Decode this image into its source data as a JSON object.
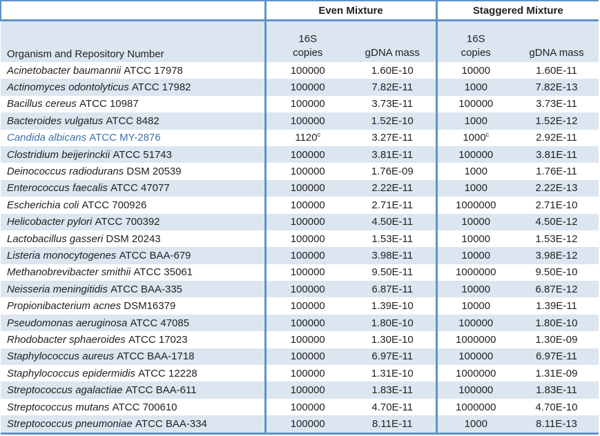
{
  "colors": {
    "stripe": "#dce6f1",
    "border": "#5f92c9",
    "highlight": "#3a6fae",
    "ink": "#1f1f1f"
  },
  "table": {
    "group_headers": {
      "even": "Even Mixture",
      "staggered": "Staggered Mixture"
    },
    "sub_headers": {
      "organism": "Organism and Repository Number",
      "copies_line1": "16S",
      "copies_line2": "copies",
      "gdna": "gDNA mass"
    },
    "rows": [
      {
        "organism_italic": "Acinetobacter baumannii",
        "organism_roman": "ATCC 17978",
        "highlight": false,
        "even_copies": "100000",
        "even_copies_sup": "",
        "even_gdna": "1.60E-10",
        "stag_copies": "10000",
        "stag_copies_sup": "",
        "stag_gdna": "1.60E-11"
      },
      {
        "organism_italic": "Actinomyces odontolyticus",
        "organism_roman": "ATCC 17982",
        "highlight": false,
        "even_copies": "100000",
        "even_copies_sup": "",
        "even_gdna": "7.82E-11",
        "stag_copies": "1000",
        "stag_copies_sup": "",
        "stag_gdna": "7.82E-13"
      },
      {
        "organism_italic": "Bacillus cereus",
        "organism_roman": "ATCC 10987",
        "highlight": false,
        "even_copies": "100000",
        "even_copies_sup": "",
        "even_gdna": "3.73E-11",
        "stag_copies": "100000",
        "stag_copies_sup": "",
        "stag_gdna": "3.73E-11"
      },
      {
        "organism_italic": "Bacteroides vulgatus",
        "organism_roman": "ATCC 8482",
        "highlight": false,
        "even_copies": "100000",
        "even_copies_sup": "",
        "even_gdna": "1.52E-10",
        "stag_copies": "1000",
        "stag_copies_sup": "",
        "stag_gdna": "1.52E-12"
      },
      {
        "organism_italic": "Candida albicans",
        "organism_roman": "ATCC MY-2876",
        "highlight": true,
        "even_copies": "1120",
        "even_copies_sup": "c",
        "even_gdna": "3.27E-11",
        "stag_copies": "1000",
        "stag_copies_sup": "c",
        "stag_gdna": "2.92E-11"
      },
      {
        "organism_italic": "Clostridium beijerinckii",
        "organism_roman": "ATCC 51743",
        "highlight": false,
        "even_copies": "100000",
        "even_copies_sup": "",
        "even_gdna": "3.81E-11",
        "stag_copies": "100000",
        "stag_copies_sup": "",
        "stag_gdna": "3.81E-11"
      },
      {
        "organism_italic": "Deinococcus radiodurans",
        "organism_roman": "DSM 20539",
        "highlight": false,
        "even_copies": "100000",
        "even_copies_sup": "",
        "even_gdna": "1.76E-09",
        "stag_copies": "1000",
        "stag_copies_sup": "",
        "stag_gdna": "1.76E-11"
      },
      {
        "organism_italic": "Enterococcus faecalis",
        "organism_roman": "ATCC 47077",
        "highlight": false,
        "even_copies": "100000",
        "even_copies_sup": "",
        "even_gdna": "2.22E-11",
        "stag_copies": "1000",
        "stag_copies_sup": "",
        "stag_gdna": "2.22E-13"
      },
      {
        "organism_italic": "Escherichia coli",
        "organism_roman": "ATCC 700926",
        "highlight": false,
        "even_copies": "100000",
        "even_copies_sup": "",
        "even_gdna": "2.71E-11",
        "stag_copies": "1000000",
        "stag_copies_sup": "",
        "stag_gdna": "2.71E-10"
      },
      {
        "organism_italic": "Helicobacter pylori",
        "organism_roman": "ATCC 700392",
        "highlight": false,
        "even_copies": "100000",
        "even_copies_sup": "",
        "even_gdna": "4.50E-11",
        "stag_copies": "10000",
        "stag_copies_sup": "",
        "stag_gdna": "4.50E-12"
      },
      {
        "organism_italic": "Lactobacillus gasseri",
        "organism_roman": "DSM 20243",
        "highlight": false,
        "even_copies": "100000",
        "even_copies_sup": "",
        "even_gdna": "1.53E-11",
        "stag_copies": "10000",
        "stag_copies_sup": "",
        "stag_gdna": "1.53E-12"
      },
      {
        "organism_italic": "Listeria monocytogenes",
        "organism_roman": "ATCC BAA-679",
        "highlight": false,
        "even_copies": "100000",
        "even_copies_sup": "",
        "even_gdna": "3.98E-11",
        "stag_copies": "10000",
        "stag_copies_sup": "",
        "stag_gdna": "3.98E-12"
      },
      {
        "organism_italic": "Methanobrevibacter smithii",
        "organism_roman": "ATCC 35061",
        "highlight": false,
        "even_copies": "100000",
        "even_copies_sup": "",
        "even_gdna": "9.50E-11",
        "stag_copies": "1000000",
        "stag_copies_sup": "",
        "stag_gdna": "9.50E-10"
      },
      {
        "organism_italic": "Neisseria meningitidis",
        "organism_roman": "ATCC BAA-335",
        "highlight": false,
        "even_copies": "100000",
        "even_copies_sup": "",
        "even_gdna": "6.87E-11",
        "stag_copies": "10000",
        "stag_copies_sup": "",
        "stag_gdna": "6.87E-12"
      },
      {
        "organism_italic": "Propionibacterium acnes",
        "organism_roman": "DSM16379",
        "highlight": false,
        "even_copies": "100000",
        "even_copies_sup": "",
        "even_gdna": "1.39E-10",
        "stag_copies": "10000",
        "stag_copies_sup": "",
        "stag_gdna": "1.39E-11"
      },
      {
        "organism_italic": "Pseudomonas aeruginosa",
        "organism_roman": "ATCC 47085",
        "highlight": false,
        "even_copies": "100000",
        "even_copies_sup": "",
        "even_gdna": "1.80E-10",
        "stag_copies": "100000",
        "stag_copies_sup": "",
        "stag_gdna": "1.80E-10"
      },
      {
        "organism_italic": "Rhodobacter sphaeroides",
        "organism_roman": "ATCC 17023",
        "highlight": false,
        "even_copies": "100000",
        "even_copies_sup": "",
        "even_gdna": "1.30E-10",
        "stag_copies": "1000000",
        "stag_copies_sup": "",
        "stag_gdna": "1.30E-09"
      },
      {
        "organism_italic": "Staphylococcus aureus",
        "organism_roman": "ATCC BAA-1718",
        "highlight": false,
        "even_copies": "100000",
        "even_copies_sup": "",
        "even_gdna": "6.97E-11",
        "stag_copies": "100000",
        "stag_copies_sup": "",
        "stag_gdna": "6.97E-11"
      },
      {
        "organism_italic": "Staphylococcus epidermidis",
        "organism_roman": "ATCC 12228",
        "highlight": false,
        "even_copies": "100000",
        "even_copies_sup": "",
        "even_gdna": "1.31E-10",
        "stag_copies": "1000000",
        "stag_copies_sup": "",
        "stag_gdna": "1.31E-09"
      },
      {
        "organism_italic": "Streptococcus agalactiae",
        "organism_roman": "ATCC BAA-611",
        "highlight": false,
        "even_copies": "100000",
        "even_copies_sup": "",
        "even_gdna": "1.83E-11",
        "stag_copies": "100000",
        "stag_copies_sup": "",
        "stag_gdna": "1.83E-11"
      },
      {
        "organism_italic": "Streptococcus mutans",
        "organism_roman": "ATCC 700610",
        "highlight": false,
        "even_copies": "100000",
        "even_copies_sup": "",
        "even_gdna": "4.70E-11",
        "stag_copies": "1000000",
        "stag_copies_sup": "",
        "stag_gdna": "4.70E-10"
      },
      {
        "organism_italic": "Streptococcus pneumoniae",
        "organism_roman": "ATCC BAA-334",
        "highlight": false,
        "even_copies": "100000",
        "even_copies_sup": "",
        "even_gdna": "8.11E-11",
        "stag_copies": "1000",
        "stag_copies_sup": "",
        "stag_gdna": "8.11E-13"
      }
    ]
  }
}
